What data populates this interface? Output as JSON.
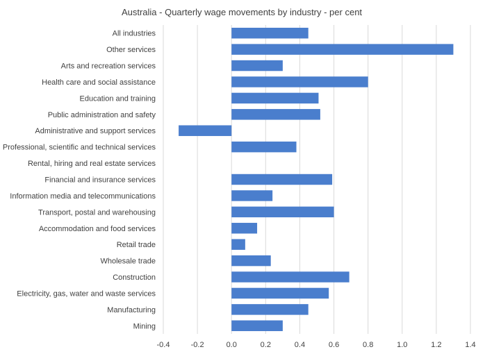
{
  "chart_data": {
    "type": "bar",
    "orientation": "horizontal",
    "title": "Australia - Quarterly wage movements by industry - per cent",
    "categories": [
      "All industries",
      "Other services",
      "Arts and recreation services",
      "Health care and social assistance",
      "Education and training",
      "Public administration and safety",
      "Administrative and support services",
      "Professional, scientific and technical services",
      "Rental, hiring and real estate services",
      "Financial and insurance services",
      "Information media and telecommunications",
      "Transport, postal and warehousing",
      "Accommodation and food services",
      "Retail trade",
      "Wholesale trade",
      "Construction",
      "Electricity, gas, water and waste services",
      "Manufacturing",
      "Mining"
    ],
    "values": [
      0.45,
      1.3,
      0.3,
      0.8,
      0.51,
      0.52,
      -0.31,
      0.38,
      0.0,
      0.59,
      0.24,
      0.6,
      0.15,
      0.08,
      0.23,
      0.69,
      0.57,
      0.45,
      0.3
    ],
    "xlim": [
      -0.4,
      1.4
    ],
    "xticks": [
      -0.4,
      -0.2,
      0.0,
      0.2,
      0.4,
      0.6,
      0.8,
      1.0,
      1.2,
      1.4
    ],
    "xtick_labels": [
      "-0.4",
      "-0.2",
      "0.0",
      "0.2",
      "0.4",
      "0.6",
      "0.8",
      "1.0",
      "1.2",
      "1.4"
    ],
    "grid": "vertical",
    "legend": "none",
    "bar_color": "#4a7ecd",
    "grid_color": "#d9d9d9"
  }
}
